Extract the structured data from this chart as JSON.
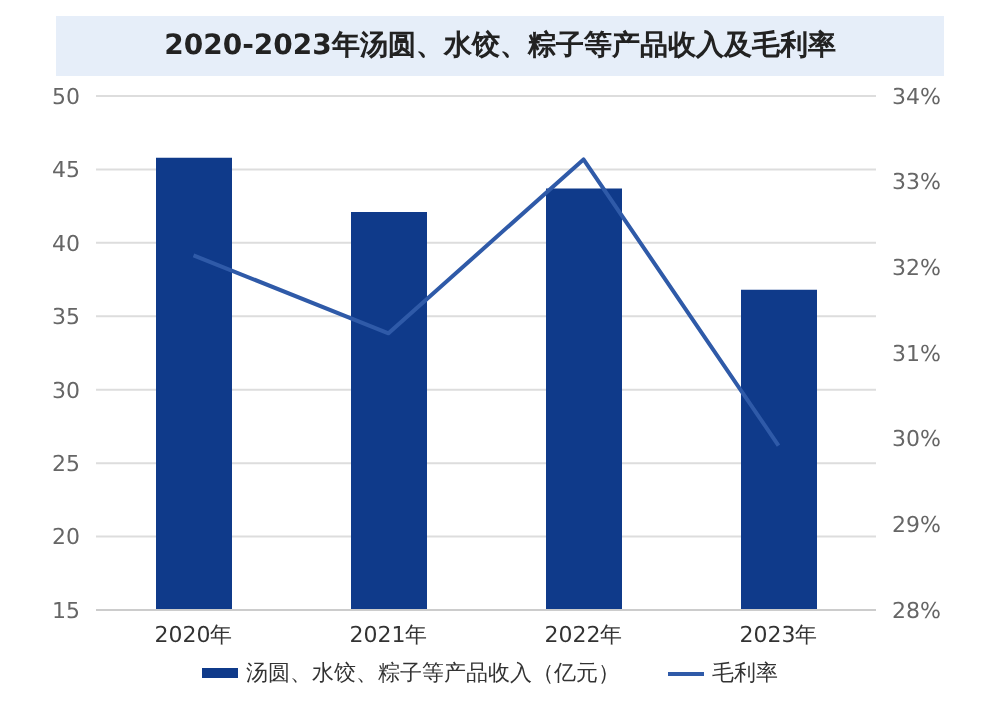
{
  "chart_data": {
    "type": "bar",
    "title": "2020-2023年汤圆、水饺、粽子等产品收入及毛利率",
    "categories": [
      "2020年",
      "2021年",
      "2022年",
      "2023年"
    ],
    "series": [
      {
        "name": "汤圆、水饺、粽子等产品收入（亿元）",
        "color": "#0f3a8a",
        "values": [
          45.8,
          42.1,
          43.7,
          36.8
        ]
      },
      {
        "name": "毛利率",
        "type": "line",
        "axis": "y2",
        "color": "#2f5aa8",
        "values": [
          32.14,
          31.23,
          33.26,
          29.92
        ]
      }
    ],
    "ylim": [
      15,
      50
    ],
    "yticks": [
      15,
      20,
      25,
      30,
      35,
      40,
      45,
      50
    ],
    "y2lim": [
      28,
      34
    ],
    "y2ticks": [
      {
        "value": 28,
        "label": "28%"
      },
      {
        "value": 29,
        "label": "29%"
      },
      {
        "value": 30,
        "label": "30%"
      },
      {
        "value": 31,
        "label": "31%"
      },
      {
        "value": 32,
        "label": "32%"
      },
      {
        "value": 33,
        "label": "33%"
      },
      {
        "value": 34,
        "label": "34%"
      }
    ],
    "grid": "y",
    "legend": "bottom",
    "marker": "none"
  }
}
